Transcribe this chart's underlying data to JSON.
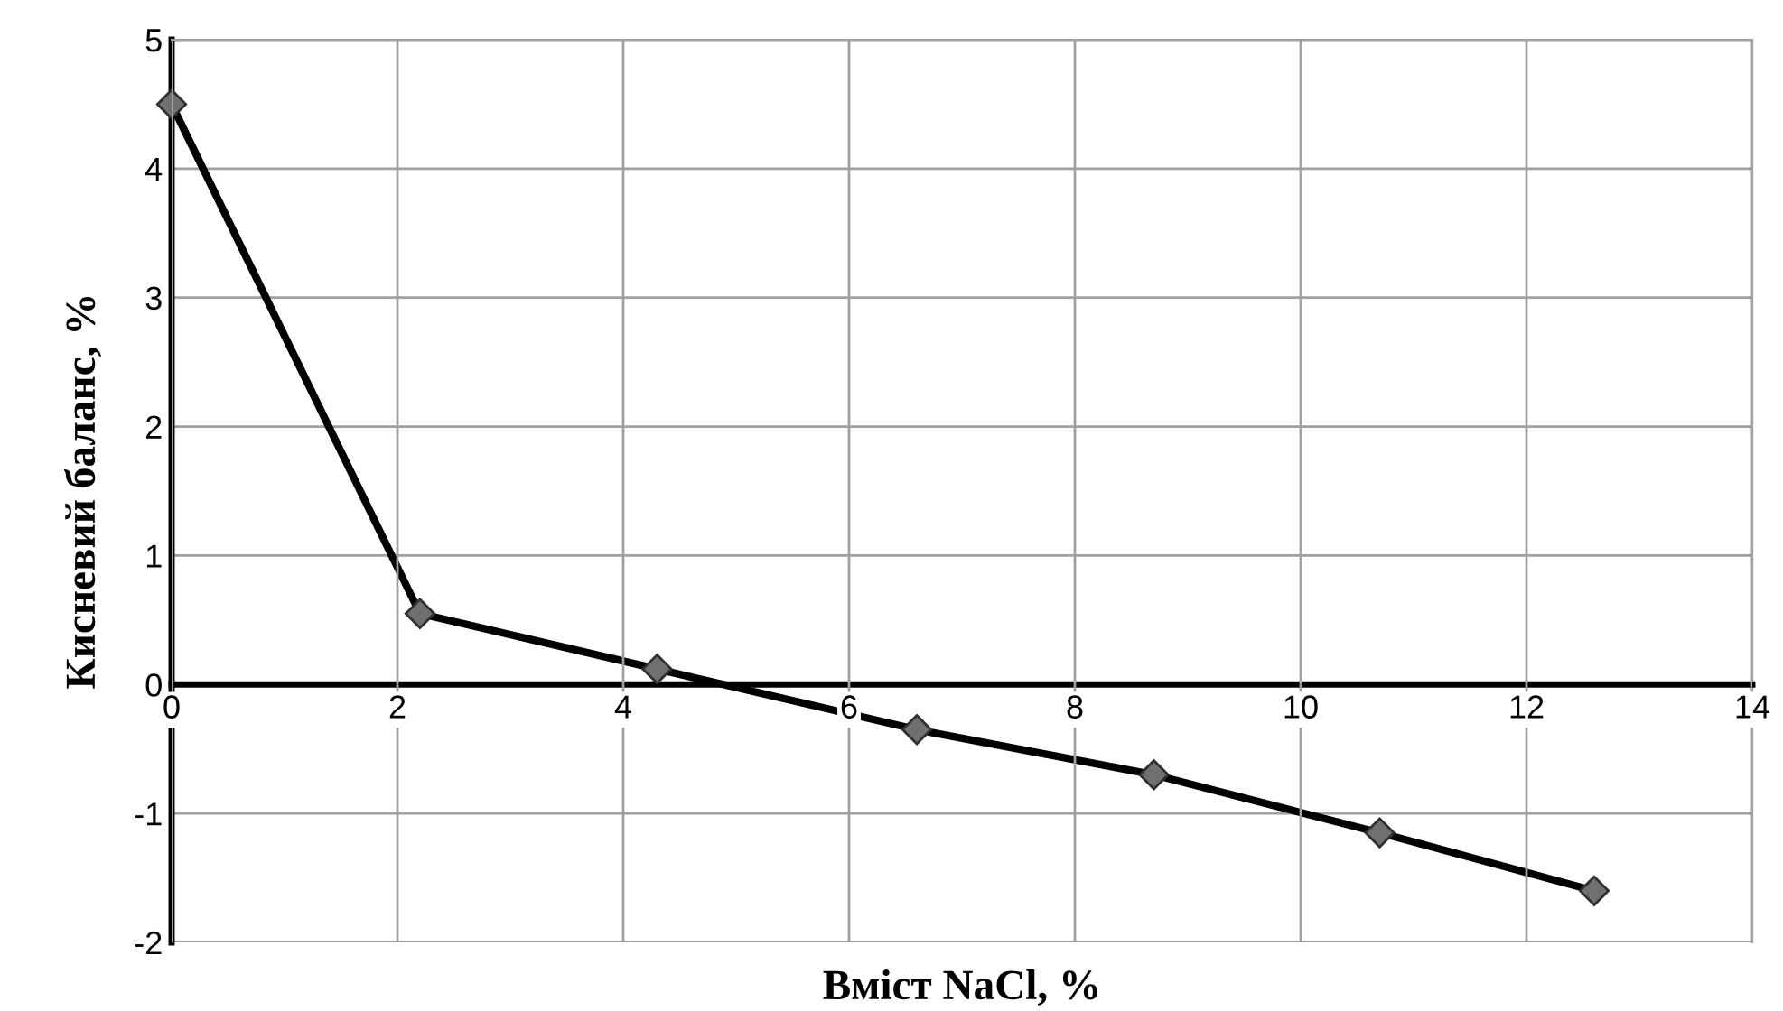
{
  "chart_data": {
    "type": "line",
    "xlabel": "Вміст NaCl, %",
    "ylabel": "Кисневий баланс, %",
    "series": [
      {
        "color": "#000000",
        "x": [
          0,
          2.2,
          4.3,
          6.6,
          8.7,
          10.7,
          12.6
        ],
        "values": [
          4.5,
          0.55,
          0.12,
          -0.35,
          -0.7,
          -1.15,
          -1.6
        ]
      }
    ],
    "xlim": [
      0,
      14
    ],
    "xticks": [
      0,
      2,
      4,
      6,
      8,
      10,
      12,
      14
    ],
    "ylim": [
      -2,
      5
    ],
    "yticks": [
      -2,
      -1,
      0,
      1,
      2,
      3,
      4,
      5
    ],
    "grid": true,
    "legend": false,
    "marker": "diamond",
    "line_style": "solid"
  }
}
